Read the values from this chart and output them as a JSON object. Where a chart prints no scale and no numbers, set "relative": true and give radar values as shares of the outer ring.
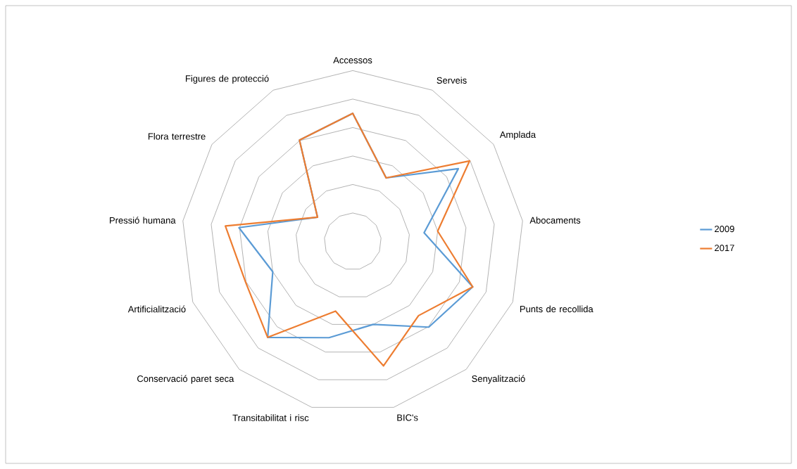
{
  "chart_data": {
    "type": "radar",
    "relative": true,
    "legend": "right",
    "grid": true,
    "marker": "none",
    "categories": [
      "Accessos",
      "Serveis",
      "Amplada",
      "Abocaments",
      "Punts de recollida",
      "Senyalització",
      "BIC's",
      "Transitabilitat i risc",
      "Conservació paret seca",
      "Artificialització",
      "Pressió humana",
      "Flora terrestre",
      "Figures de protecció"
    ],
    "series": [
      {
        "name": "2009",
        "color": "#5b9bd5",
        "values": [
          0.75,
          0.42,
          0.75,
          0.42,
          0.75,
          0.67,
          0.5,
          0.58,
          0.75,
          0.5,
          0.67,
          0.25,
          0.67
        ]
      },
      {
        "name": "2017",
        "color": "#ed7d31",
        "values": [
          0.75,
          0.42,
          0.83,
          0.5,
          0.75,
          0.58,
          0.75,
          0.42,
          0.75,
          0.67,
          0.75,
          0.25,
          0.67
        ]
      }
    ]
  }
}
